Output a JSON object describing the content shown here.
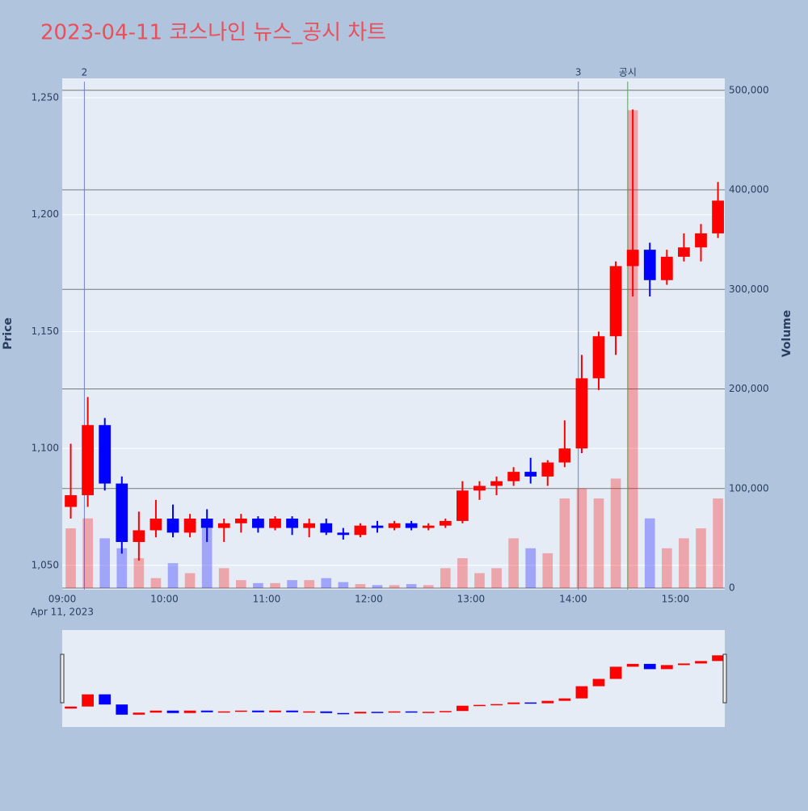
{
  "chart_data": {
    "type": "candlestick",
    "title": "2023-04-11 코스나인 뉴스_공시 차트",
    "y_title": "Price",
    "y2_title": "Volume",
    "x_date_label": "Apr 11, 2023",
    "x": [
      "09:00",
      "09:10",
      "09:20",
      "09:30",
      "09:40",
      "09:50",
      "10:00",
      "10:10",
      "10:20",
      "10:30",
      "10:40",
      "10:50",
      "11:00",
      "11:10",
      "11:20",
      "11:30",
      "11:40",
      "11:50",
      "12:00",
      "12:10",
      "12:20",
      "12:30",
      "12:40",
      "12:50",
      "13:00",
      "13:10",
      "13:20",
      "13:30",
      "13:40",
      "13:50",
      "14:00",
      "14:10",
      "14:20",
      "14:30",
      "14:40",
      "14:50",
      "15:00",
      "15:10",
      "15:20"
    ],
    "open": [
      1075,
      1080,
      1110,
      1085,
      1060,
      1065,
      1070,
      1064,
      1070,
      1066,
      1068,
      1070,
      1066,
      1070,
      1066,
      1068,
      1064,
      1063,
      1067,
      1066,
      1068,
      1066,
      1067,
      1069,
      1082,
      1084,
      1086,
      1090,
      1088,
      1094,
      1100,
      1130,
      1148,
      1178,
      1185,
      1172,
      1182,
      1186,
      1192
    ],
    "high": [
      1102,
      1122,
      1113,
      1088,
      1073,
      1078,
      1076,
      1072,
      1074,
      1070,
      1072,
      1071,
      1071,
      1071,
      1070,
      1070,
      1066,
      1068,
      1069,
      1069,
      1069,
      1068,
      1070,
      1086,
      1086,
      1088,
      1092,
      1096,
      1095,
      1112,
      1140,
      1150,
      1180,
      1245,
      1188,
      1185,
      1192,
      1196,
      1214
    ],
    "low": [
      1070,
      1075,
      1082,
      1055,
      1052,
      1062,
      1062,
      1062,
      1060,
      1060,
      1064,
      1064,
      1065,
      1063,
      1062,
      1063,
      1061,
      1062,
      1064,
      1065,
      1065,
      1065,
      1066,
      1068,
      1078,
      1080,
      1084,
      1085,
      1084,
      1092,
      1098,
      1125,
      1140,
      1165,
      1165,
      1170,
      1180,
      1180,
      1190
    ],
    "close": [
      1080,
      1110,
      1085,
      1060,
      1065,
      1070,
      1064,
      1070,
      1066,
      1068,
      1070,
      1066,
      1070,
      1066,
      1068,
      1064,
      1063,
      1067,
      1066,
      1068,
      1066,
      1067,
      1069,
      1082,
      1084,
      1086,
      1090,
      1088,
      1094,
      1100,
      1130,
      1148,
      1178,
      1185,
      1172,
      1182,
      1186,
      1192,
      1206
    ],
    "volume": [
      60000,
      70000,
      50000,
      40000,
      30000,
      10000,
      25000,
      15000,
      60000,
      20000,
      8000,
      5000,
      5000,
      8000,
      8000,
      10000,
      6000,
      4000,
      3000,
      3000,
      4000,
      3000,
      20000,
      30000,
      15000,
      20000,
      50000,
      40000,
      35000,
      90000,
      100000,
      90000,
      110000,
      480000,
      70000,
      40000,
      50000,
      60000,
      90000
    ],
    "up_color": "#ff0000",
    "down_color": "#0000ff",
    "xlim": [
      "09:00",
      "15:29"
    ],
    "xticks": [
      "09:00",
      "10:00",
      "11:00",
      "12:00",
      "13:00",
      "14:00",
      "15:00"
    ],
    "ylim": [
      1039.6,
      1258.3
    ],
    "yticks": [
      {
        "value": 1050,
        "label": "1,050"
      },
      {
        "value": 1100,
        "label": "1,100"
      },
      {
        "value": 1150,
        "label": "1,150"
      },
      {
        "value": 1200,
        "label": "1,200"
      },
      {
        "value": 1250,
        "label": "1,250"
      }
    ],
    "y2lim": [
      -1600,
      512000
    ],
    "y2ticks": [
      0,
      {
        "value": 100000,
        "label": "100,000"
      },
      {
        "value": 200000,
        "label": "200,000"
      },
      {
        "value": 300000,
        "label": "300,000"
      },
      {
        "value": 400000,
        "label": "400,000"
      },
      {
        "value": 500000,
        "label": "500,000"
      }
    ],
    "markers": [
      {
        "x": "09:13",
        "label": "2",
        "color": "#6b7fd8"
      },
      {
        "x": "14:03",
        "label": "3",
        "color": "#6b7fd8"
      },
      {
        "x": "14:32",
        "label": "공시",
        "color": "#5aa05a"
      }
    ],
    "grid": true
  }
}
